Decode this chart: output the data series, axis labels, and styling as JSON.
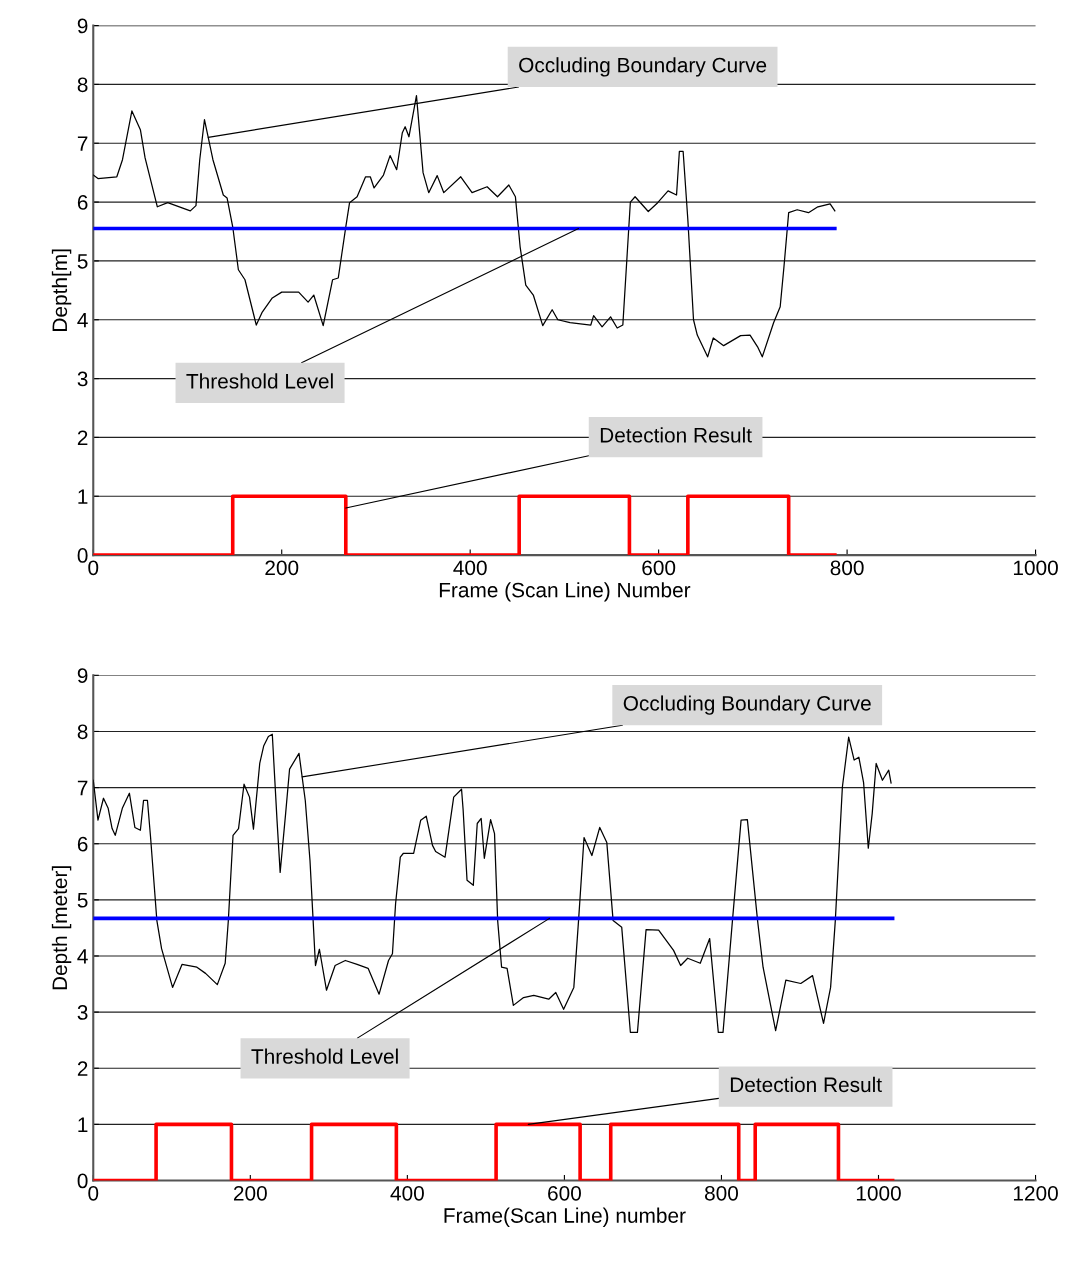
{
  "chart_data": [
    {
      "type": "line",
      "xlabel": "Frame (Scan Line) Number",
      "ylabel": "Depth[m]",
      "xlim": [
        0,
        1000
      ],
      "xticks": [
        0,
        200,
        400,
        600,
        800,
        1000
      ],
      "ylim": [
        0,
        9
      ],
      "yticks": [
        0,
        1,
        2,
        3,
        4,
        5,
        6,
        7,
        8,
        9
      ],
      "grid": "y",
      "legend": false,
      "marker": "none",
      "series": [
        {
          "color": "#000000",
          "x": [
            0,
            5,
            25,
            31,
            41,
            50,
            55,
            68,
            79,
            103,
            109,
            113,
            118,
            127,
            138,
            142,
            148,
            154,
            161,
            173,
            179,
            190,
            200,
            218,
            228,
            234,
            244,
            254,
            260,
            268,
            272,
            280,
            289,
            294,
            298,
            308,
            315,
            322,
            328,
            331,
            335,
            343,
            350,
            356,
            365,
            372,
            390,
            402,
            418,
            429,
            441,
            448,
            453,
            459,
            467,
            477,
            487,
            493,
            506,
            528,
            531,
            540,
            549,
            556,
            562,
            570,
            575,
            589,
            599,
            610,
            619,
            622,
            626,
            631,
            637,
            641,
            652,
            658,
            669,
            687,
            697,
            705,
            710,
            722,
            729,
            733,
            738,
            747,
            759,
            769,
            782,
            787
          ],
          "values": [
            6.46,
            6.4,
            6.43,
            6.72,
            7.55,
            7.23,
            6.75,
            5.92,
            5.99,
            5.85,
            5.94,
            6.72,
            7.4,
            6.72,
            6.12,
            6.07,
            5.58,
            4.85,
            4.68,
            3.91,
            4.12,
            4.37,
            4.47,
            4.47,
            4.3,
            4.42,
            3.9,
            4.68,
            4.71,
            5.58,
            5.99,
            6.09,
            6.43,
            6.43,
            6.24,
            6.46,
            6.79,
            6.55,
            7.18,
            7.28,
            7.11,
            7.81,
            6.5,
            6.16,
            6.45,
            6.16,
            6.43,
            6.16,
            6.26,
            6.09,
            6.29,
            6.09,
            5.24,
            4.59,
            4.42,
            3.9,
            4.17,
            4.0,
            3.95,
            3.91,
            4.07,
            3.88,
            4.05,
            3.86,
            3.91,
            6.0,
            6.09,
            5.84,
            5.99,
            6.19,
            6.12,
            6.86,
            6.86,
            5.7,
            4.0,
            3.74,
            3.37,
            3.69,
            3.56,
            3.73,
            3.74,
            3.54,
            3.37,
            3.95,
            4.22,
            4.9,
            5.82,
            5.87,
            5.82,
            5.92,
            5.97,
            5.85
          ]
        },
        {
          "color": "#0000ff",
          "x": [
            0,
            787
          ],
          "values": [
            5.55,
            5.55
          ]
        },
        {
          "color": "#ff0000",
          "x": [
            0,
            148,
            148,
            268,
            268,
            452,
            452,
            569,
            569,
            631,
            631,
            738,
            738,
            787
          ],
          "values": [
            0,
            0,
            1,
            1,
            0,
            0,
            1,
            1,
            0,
            0,
            1,
            1,
            0,
            0
          ]
        }
      ],
      "annotations": [
        {
          "text": "Occluding Boundary Curve",
          "x": 122,
          "y": 7.1
        },
        {
          "text": "Threshold Level",
          "x": 515,
          "y": 5.55
        },
        {
          "text": "Detection Result",
          "x": 268,
          "y": 0.8
        }
      ]
    },
    {
      "type": "line",
      "xlabel": "Frame(Scan Line) number",
      "ylabel": "Depth [meter]",
      "xlim": [
        0,
        1200
      ],
      "xticks": [
        0,
        200,
        400,
        600,
        800,
        1000,
        1200
      ],
      "ylim": [
        0,
        9
      ],
      "yticks": [
        0,
        1,
        2,
        3,
        4,
        5,
        6,
        7,
        8,
        9
      ],
      "grid": "y",
      "legend": false,
      "marker": "none",
      "series": [
        {
          "color": "#000000",
          "x": [
            0,
            6,
            13,
            19,
            24,
            28,
            37,
            46,
            53,
            60,
            64,
            69,
            73,
            81,
            87,
            101,
            113,
            132,
            143,
            158,
            168,
            172,
            178,
            185,
            192,
            199,
            204,
            212,
            217,
            223,
            228,
            234,
            238,
            245,
            250,
            262,
            270,
            276,
            280,
            283,
            288,
            297,
            308,
            321,
            336,
            350,
            364,
            376,
            381,
            385,
            391,
            395,
            408,
            417,
            424,
            432,
            436,
            448,
            459,
            469,
            471,
            476,
            484,
            489,
            494,
            498,
            506,
            511,
            515,
            520,
            527,
            535,
            548,
            561,
            580,
            589,
            599,
            612,
            618,
            625,
            635,
            645,
            654,
            662,
            673,
            684,
            693,
            704,
            720,
            739,
            748,
            757,
            773,
            785,
            796,
            802,
            814,
            825,
            833,
            846,
            853,
            869,
            882,
            901,
            916,
            930,
            939,
            945,
            954,
            962,
            969,
            975,
            981,
            987,
            992,
            997,
            1005,
            1013,
            1016
          ],
          "values": [
            7.13,
            6.42,
            6.81,
            6.63,
            6.27,
            6.15,
            6.63,
            6.9,
            6.29,
            6.24,
            6.77,
            6.77,
            6.11,
            4.63,
            4.13,
            3.44,
            3.85,
            3.8,
            3.69,
            3.49,
            3.87,
            4.63,
            6.15,
            6.27,
            7.06,
            6.83,
            6.26,
            7.43,
            7.74,
            7.91,
            7.95,
            6.42,
            5.49,
            6.54,
            7.33,
            7.61,
            6.77,
            5.7,
            4.63,
            3.83,
            4.12,
            3.39,
            3.83,
            3.92,
            3.85,
            3.78,
            3.32,
            3.92,
            4.04,
            4.93,
            5.76,
            5.83,
            5.83,
            6.42,
            6.49,
            5.97,
            5.86,
            5.76,
            6.83,
            6.97,
            6.61,
            5.35,
            5.26,
            6.36,
            6.45,
            5.74,
            6.43,
            6.18,
            4.63,
            3.8,
            3.78,
            3.12,
            3.26,
            3.3,
            3.23,
            3.35,
            3.05,
            3.44,
            4.63,
            6.11,
            5.79,
            6.29,
            6.02,
            4.63,
            4.51,
            2.64,
            2.64,
            4.47,
            4.46,
            4.1,
            3.83,
            3.96,
            3.87,
            4.31,
            2.64,
            2.64,
            4.63,
            6.42,
            6.43,
            4.63,
            3.8,
            2.67,
            3.57,
            3.51,
            3.65,
            2.8,
            3.44,
            4.63,
            7.01,
            7.9,
            7.49,
            7.54,
            7.09,
            5.92,
            6.54,
            7.43,
            7.13,
            7.31,
            7.08
          ]
        },
        {
          "color": "#0000ff",
          "x": [
            0,
            1018
          ],
          "values": [
            4.67,
            4.67
          ]
        },
        {
          "color": "#ff0000",
          "x": [
            0,
            80,
            80,
            176,
            176,
            278,
            278,
            386,
            386,
            513,
            513,
            620,
            620,
            659,
            659,
            822,
            822,
            843,
            843,
            949,
            949,
            1018
          ],
          "values": [
            0,
            0,
            1,
            1,
            0,
            0,
            1,
            1,
            0,
            0,
            1,
            1,
            0,
            0,
            1,
            1,
            0,
            0,
            1,
            1,
            0,
            0
          ]
        }
      ],
      "annotations": [
        {
          "text": "Occluding Boundary Curve",
          "x": 266,
          "y": 7.19
        },
        {
          "text": "Threshold Level",
          "x": 581,
          "y": 4.67
        },
        {
          "text": "Detection Result",
          "x": 554,
          "y": 1.0
        }
      ]
    }
  ]
}
